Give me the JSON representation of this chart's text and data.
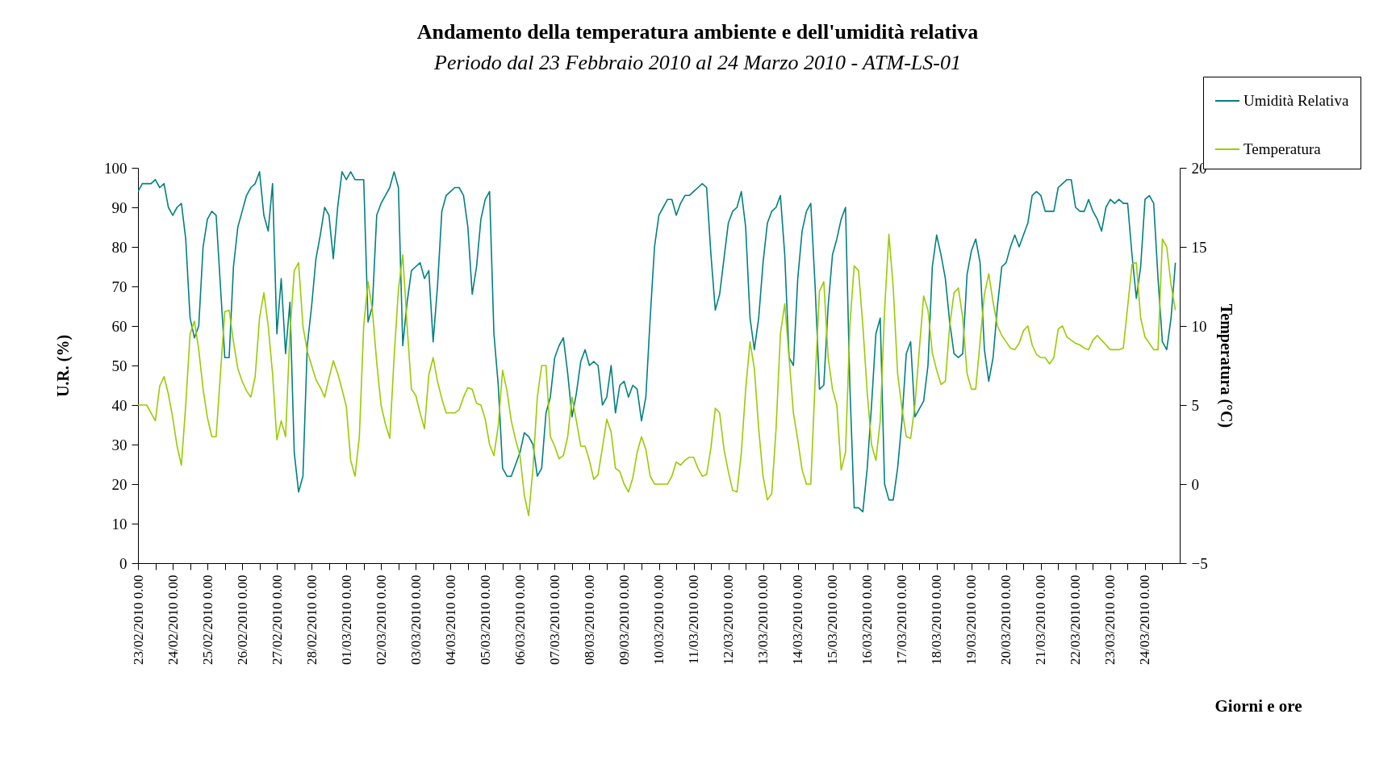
{
  "chart_data": {
    "type": "line",
    "title": "Andamento della temperatura ambiente e dell'umidità relativa",
    "subtitle": "Periodo dal 23 Febbraio 2010 al 24 Marzo 2010 - ATM-LS-01",
    "xlabel": "Giorni e ore",
    "ylabel": "U.R. (%)",
    "y2label": "Temperatura (°C)",
    "legend": "top right",
    "x": [
      "2010-02-23T00:00",
      "2010-02-23T03:00",
      "2010-02-23T06:00",
      "2010-02-23T09:00",
      "2010-02-23T12:00",
      "2010-02-23T15:00",
      "2010-02-23T18:00",
      "2010-02-23T21:00",
      "2010-02-24T00:00",
      "2010-02-24T03:00",
      "2010-02-24T06:00",
      "2010-02-24T09:00",
      "2010-02-24T12:00",
      "2010-02-24T15:00",
      "2010-02-24T18:00",
      "2010-02-24T21:00",
      "2010-02-25T00:00",
      "2010-02-25T03:00",
      "2010-02-25T06:00",
      "2010-02-25T09:00",
      "2010-02-25T12:00",
      "2010-02-25T15:00",
      "2010-02-25T18:00",
      "2010-02-25T21:00",
      "2010-02-26T00:00",
      "2010-02-26T03:00",
      "2010-02-26T06:00",
      "2010-02-26T09:00",
      "2010-02-26T12:00",
      "2010-02-26T15:00",
      "2010-02-26T18:00",
      "2010-02-26T21:00",
      "2010-02-27T00:00",
      "2010-02-27T03:00",
      "2010-02-27T06:00",
      "2010-02-27T09:00",
      "2010-02-27T12:00",
      "2010-02-27T15:00",
      "2010-02-27T18:00",
      "2010-02-27T21:00",
      "2010-02-28T00:00",
      "2010-02-28T03:00",
      "2010-02-28T06:00",
      "2010-02-28T09:00",
      "2010-02-28T12:00",
      "2010-02-28T15:00",
      "2010-02-28T18:00",
      "2010-02-28T21:00",
      "2010-03-01T00:00",
      "2010-03-01T03:00",
      "2010-03-01T06:00",
      "2010-03-01T09:00",
      "2010-03-01T12:00",
      "2010-03-01T15:00",
      "2010-03-01T18:00",
      "2010-03-01T21:00",
      "2010-03-02T00:00",
      "2010-03-02T03:00",
      "2010-03-02T06:00",
      "2010-03-02T09:00",
      "2010-03-02T12:00",
      "2010-03-02T15:00",
      "2010-03-02T18:00",
      "2010-03-02T21:00",
      "2010-03-03T00:00",
      "2010-03-03T03:00",
      "2010-03-03T06:00",
      "2010-03-03T09:00",
      "2010-03-03T12:00",
      "2010-03-03T15:00",
      "2010-03-03T18:00",
      "2010-03-03T21:00",
      "2010-03-04T00:00",
      "2010-03-04T03:00",
      "2010-03-04T06:00",
      "2010-03-04T09:00",
      "2010-03-04T12:00",
      "2010-03-04T15:00",
      "2010-03-04T18:00",
      "2010-03-04T21:00",
      "2010-03-05T00:00",
      "2010-03-05T03:00",
      "2010-03-05T06:00",
      "2010-03-05T09:00",
      "2010-03-05T12:00",
      "2010-03-05T15:00",
      "2010-03-05T18:00",
      "2010-03-05T21:00",
      "2010-03-06T00:00",
      "2010-03-06T03:00",
      "2010-03-06T06:00",
      "2010-03-06T09:00",
      "2010-03-06T12:00",
      "2010-03-06T15:00",
      "2010-03-06T18:00",
      "2010-03-06T21:00",
      "2010-03-07T00:00",
      "2010-03-07T03:00",
      "2010-03-07T06:00",
      "2010-03-07T09:00",
      "2010-03-07T12:00",
      "2010-03-07T15:00",
      "2010-03-07T18:00",
      "2010-03-07T21:00",
      "2010-03-08T00:00",
      "2010-03-08T03:00",
      "2010-03-08T06:00",
      "2010-03-08T09:00",
      "2010-03-08T12:00",
      "2010-03-08T15:00",
      "2010-03-08T18:00",
      "2010-03-08T21:00",
      "2010-03-09T00:00",
      "2010-03-09T03:00",
      "2010-03-09T06:00",
      "2010-03-09T09:00",
      "2010-03-09T12:00",
      "2010-03-09T15:00",
      "2010-03-09T18:00",
      "2010-03-09T21:00",
      "2010-03-10T00:00",
      "2010-03-10T03:00",
      "2010-03-10T06:00",
      "2010-03-10T09:00",
      "2010-03-10T12:00",
      "2010-03-10T15:00",
      "2010-03-10T18:00",
      "2010-03-10T21:00",
      "2010-03-11T00:00",
      "2010-03-11T03:00",
      "2010-03-11T06:00",
      "2010-03-11T09:00",
      "2010-03-11T12:00",
      "2010-03-11T15:00",
      "2010-03-11T18:00",
      "2010-03-11T21:00",
      "2010-03-12T00:00",
      "2010-03-12T03:00",
      "2010-03-12T06:00",
      "2010-03-12T09:00",
      "2010-03-12T12:00",
      "2010-03-12T15:00",
      "2010-03-12T18:00",
      "2010-03-12T21:00",
      "2010-03-13T00:00",
      "2010-03-13T03:00",
      "2010-03-13T06:00",
      "2010-03-13T09:00",
      "2010-03-13T12:00",
      "2010-03-13T15:00",
      "2010-03-13T18:00",
      "2010-03-13T21:00",
      "2010-03-14T00:00",
      "2010-03-14T03:00",
      "2010-03-14T06:00",
      "2010-03-14T09:00",
      "2010-03-14T12:00",
      "2010-03-14T15:00",
      "2010-03-14T18:00",
      "2010-03-14T21:00",
      "2010-03-15T00:00",
      "2010-03-15T03:00",
      "2010-03-15T06:00",
      "2010-03-15T09:00",
      "2010-03-15T12:00",
      "2010-03-15T15:00",
      "2010-03-15T18:00",
      "2010-03-15T21:00",
      "2010-03-16T00:00",
      "2010-03-16T03:00",
      "2010-03-16T06:00",
      "2010-03-16T09:00",
      "2010-03-16T12:00",
      "2010-03-16T15:00",
      "2010-03-16T18:00",
      "2010-03-16T21:00",
      "2010-03-17T00:00",
      "2010-03-17T03:00",
      "2010-03-17T06:00",
      "2010-03-17T09:00",
      "2010-03-17T12:00",
      "2010-03-17T15:00",
      "2010-03-17T18:00",
      "2010-03-17T21:00",
      "2010-03-18T00:00",
      "2010-03-18T03:00",
      "2010-03-18T06:00",
      "2010-03-18T09:00",
      "2010-03-18T12:00",
      "2010-03-18T15:00",
      "2010-03-18T18:00",
      "2010-03-18T21:00",
      "2010-03-19T00:00",
      "2010-03-19T03:00",
      "2010-03-19T06:00",
      "2010-03-19T09:00",
      "2010-03-19T12:00",
      "2010-03-19T15:00",
      "2010-03-19T18:00",
      "2010-03-19T21:00",
      "2010-03-20T00:00",
      "2010-03-20T03:00",
      "2010-03-20T06:00",
      "2010-03-20T09:00",
      "2010-03-20T12:00",
      "2010-03-20T15:00",
      "2010-03-20T18:00",
      "2010-03-20T21:00",
      "2010-03-21T00:00",
      "2010-03-21T03:00",
      "2010-03-21T06:00",
      "2010-03-21T09:00",
      "2010-03-21T12:00",
      "2010-03-21T15:00",
      "2010-03-21T18:00",
      "2010-03-21T21:00",
      "2010-03-22T00:00",
      "2010-03-22T03:00",
      "2010-03-22T06:00",
      "2010-03-22T09:00",
      "2010-03-22T12:00",
      "2010-03-22T15:00",
      "2010-03-22T18:00",
      "2010-03-22T21:00",
      "2010-03-23T00:00",
      "2010-03-23T03:00",
      "2010-03-23T06:00",
      "2010-03-23T09:00",
      "2010-03-23T12:00",
      "2010-03-23T15:00",
      "2010-03-23T18:00",
      "2010-03-23T21:00",
      "2010-03-24T00:00",
      "2010-03-24T03:00",
      "2010-03-24T06:00",
      "2010-03-24T09:00",
      "2010-03-24T12:00",
      "2010-03-24T15:00",
      "2010-03-24T18:00",
      "2010-03-24T21:00"
    ],
    "series": [
      {
        "name": "Umidità Relativa",
        "color": "#008080",
        "values": [
          94,
          96,
          96,
          96,
          97,
          95,
          96,
          90,
          88,
          90,
          91,
          82,
          62,
          57,
          60,
          80,
          87,
          89,
          88,
          70,
          52,
          52,
          75,
          85,
          89,
          93,
          95,
          96,
          99,
          88,
          84,
          96,
          58,
          72,
          53,
          66,
          28,
          18,
          22,
          55,
          65,
          77,
          83,
          90,
          88,
          77,
          90,
          99,
          97,
          99,
          97,
          97,
          97,
          61,
          65,
          88,
          91,
          93,
          95,
          99,
          95,
          55,
          66,
          74,
          75,
          76,
          72,
          74,
          56,
          70,
          89,
          93,
          94,
          95,
          95,
          93,
          85,
          68,
          75,
          87,
          92,
          94,
          58,
          45,
          24,
          22,
          22,
          25,
          28,
          33,
          32,
          30,
          22,
          24,
          38,
          42,
          52,
          55,
          57,
          48,
          37,
          43,
          51,
          54,
          50,
          51,
          50,
          40,
          42,
          50,
          38,
          45,
          46,
          42,
          45,
          44,
          36,
          42,
          62,
          80,
          88,
          90,
          92,
          92,
          88,
          91,
          93,
          93,
          94,
          95,
          96,
          95,
          78,
          64,
          68,
          77,
          86,
          89,
          90,
          94,
          85,
          62,
          54,
          62,
          76,
          86,
          89,
          90,
          93,
          78,
          52,
          50,
          72,
          84,
          89,
          91,
          70,
          44,
          45,
          65,
          78,
          82,
          87,
          90,
          45,
          14,
          14,
          13,
          24,
          40,
          58,
          62,
          20,
          16,
          16,
          24,
          36,
          53,
          56,
          37,
          39,
          41,
          50,
          75,
          83,
          78,
          72,
          61,
          53,
          52,
          53,
          73,
          79,
          82,
          76,
          54,
          46,
          52,
          65,
          75,
          76,
          80,
          83,
          80,
          83,
          86,
          93,
          94,
          93,
          89,
          89,
          89,
          95,
          96,
          97,
          97,
          90,
          89,
          89,
          92,
          89,
          87,
          84,
          90,
          92,
          91,
          92,
          91,
          91,
          78,
          67,
          75,
          92,
          93,
          91,
          72,
          56,
          54,
          62,
          76
        ]
      },
      {
        "name": "Temperatura",
        "color": "#99cc00",
        "axis": "y2",
        "values": [
          5,
          5,
          5,
          4.5,
          4,
          6.2,
          6.8,
          5.7,
          4.2,
          2.4,
          1.2,
          5,
          9.5,
          10.3,
          8.5,
          6,
          4.2,
          3,
          3,
          7,
          10.9,
          11,
          9,
          7.3,
          6.5,
          5.9,
          5.5,
          6.8,
          10.5,
          12.1,
          10,
          7,
          2.8,
          4,
          3,
          9.5,
          13.5,
          14,
          10,
          8.4,
          7.5,
          6.6,
          6.1,
          5.5,
          6.7,
          7.8,
          7,
          6,
          4.9,
          1.5,
          0.5,
          3,
          10,
          12.8,
          11,
          7.7,
          5,
          3.8,
          2.9,
          8,
          12.3,
          14.5,
          10,
          6,
          5.6,
          4.5,
          3.5,
          6.9,
          8,
          6.5,
          5.4,
          4.5,
          4.5,
          4.5,
          4.7,
          5.5,
          6.1,
          6,
          5.1,
          5,
          4.1,
          2.5,
          1.8,
          3.7,
          7.2,
          5.9,
          4,
          2.8,
          1.8,
          -0.7,
          -2,
          1,
          5.5,
          7.5,
          7.5,
          3,
          2.4,
          1.6,
          1.8,
          3,
          5.5,
          4,
          2.4,
          2.4,
          1.5,
          0.3,
          0.6,
          2.3,
          4.1,
          3.3,
          1,
          0.8,
          0,
          -0.5,
          0.4,
          2,
          3,
          2.2,
          0.5,
          0,
          0,
          0,
          0,
          0.5,
          1.4,
          1.2,
          1.5,
          1.7,
          1.7,
          1,
          0.5,
          0.6,
          2.3,
          4.8,
          4.5,
          2.2,
          0.8,
          -0.4,
          -0.5,
          2,
          6,
          9,
          7.3,
          3.5,
          0.5,
          -1,
          -0.6,
          3.5,
          9.5,
          11.4,
          8,
          4.5,
          2.8,
          0.9,
          0,
          0,
          6.5,
          12.2,
          12.8,
          8,
          6,
          5,
          0.9,
          2,
          10,
          13.8,
          13.5,
          10,
          5.8,
          2.5,
          1.5,
          4,
          11,
          15.8,
          12.4,
          7,
          4.8,
          3,
          2.9,
          5,
          8.5,
          11.9,
          11,
          8.3,
          7.2,
          6.3,
          6.5,
          10,
          12.1,
          12.4,
          10.5,
          7,
          6,
          6,
          9,
          12,
          13.3,
          11.5,
          10,
          9.4,
          9,
          8.6,
          8.5,
          8.9,
          9.7,
          10,
          8.8,
          8.2,
          8,
          8,
          7.6,
          8,
          9.8,
          10,
          9.3,
          9.1,
          8.9,
          8.8,
          8.6,
          8.5,
          9.1,
          9.4,
          9.1,
          8.8,
          8.5,
          8.5,
          8.5,
          8.6,
          11.2,
          13.9,
          14,
          10.5,
          9.3,
          8.9,
          8.5,
          8.5,
          15.5,
          15,
          12.6,
          11
        ]
      }
    ],
    "xlim": [
      "2010-02-23T00:00",
      "2010-03-25T00:00"
    ],
    "xticks": [
      {
        "value": "2010-02-23T12:00",
        "label": null
      },
      {
        "value": "2010-02-24T12:00",
        "label": null
      },
      {
        "value": "2010-02-25T12:00",
        "label": null
      },
      {
        "value": "2010-02-26T12:00",
        "label": null
      },
      {
        "value": "2010-02-27T12:00",
        "label": null
      },
      {
        "value": "2010-02-28T12:00",
        "label": null
      },
      {
        "value": "2010-03-01T12:00",
        "label": null
      },
      {
        "value": "2010-03-02T12:00",
        "label": null
      },
      {
        "value": "2010-03-03T12:00",
        "label": null
      },
      {
        "value": "2010-03-04T12:00",
        "label": null
      },
      {
        "value": "2010-03-05T12:00",
        "label": null
      },
      {
        "value": "2010-03-06T12:00",
        "label": null
      },
      {
        "value": "2010-03-07T12:00",
        "label": null
      },
      {
        "value": "2010-03-08T12:00",
        "label": null
      },
      {
        "value": "2010-03-09T12:00",
        "label": null
      },
      {
        "value": "2010-03-10T12:00",
        "label": null
      },
      {
        "value": "2010-03-11T12:00",
        "label": null
      },
      {
        "value": "2010-03-12T12:00",
        "label": null
      },
      {
        "value": "2010-03-13T12:00",
        "label": null
      },
      {
        "value": "2010-03-14T12:00",
        "label": null
      },
      {
        "value": "2010-03-15T12:00",
        "label": null
      },
      {
        "value": "2010-03-16T12:00",
        "label": null
      },
      {
        "value": "2010-03-17T12:00",
        "label": null
      },
      {
        "value": "2010-03-18T12:00",
        "label": null
      },
      {
        "value": "2010-03-19T12:00",
        "label": null
      },
      {
        "value": "2010-03-20T12:00",
        "label": null
      },
      {
        "value": "2010-03-21T12:00",
        "label": null
      },
      {
        "value": "2010-03-22T12:00",
        "label": null
      },
      {
        "value": "2010-03-23T12:00",
        "label": null
      },
      {
        "value": "2010-03-24T12:00",
        "label": null
      },
      {
        "value": "2010-02-23T00:00",
        "label": "23/02/2010 0.00"
      },
      {
        "value": "2010-02-24T00:00",
        "label": "24/02/2010 0.00"
      },
      {
        "value": "2010-02-25T00:00",
        "label": "25/02/2010 0.00"
      },
      {
        "value": "2010-02-26T00:00",
        "label": "26/02/2010 0.00"
      },
      {
        "value": "2010-02-27T00:00",
        "label": "27/02/2010 0.00"
      },
      {
        "value": "2010-02-28T00:00",
        "label": "28/02/2010 0.00"
      },
      {
        "value": "2010-03-01T00:00",
        "label": "01/03/2010 0.00"
      },
      {
        "value": "2010-03-02T00:00",
        "label": "02/03/2010 0.00"
      },
      {
        "value": "2010-03-03T00:00",
        "label": "03/03/2010 0.00"
      },
      {
        "value": "2010-03-04T00:00",
        "label": "04/03/2010 0.00"
      },
      {
        "value": "2010-03-05T00:00",
        "label": "05/03/2010 0.00"
      },
      {
        "value": "2010-03-06T00:00",
        "label": "06/03/2010 0.00"
      },
      {
        "value": "2010-03-07T00:00",
        "label": "07/03/2010 0.00"
      },
      {
        "value": "2010-03-08T00:00",
        "label": "08/03/2010 0.00"
      },
      {
        "value": "2010-03-09T00:00",
        "label": "09/03/2010 0.00"
      },
      {
        "value": "2010-03-10T00:00",
        "label": "10/03/2010 0.00"
      },
      {
        "value": "2010-03-11T00:00",
        "label": "11/03/2010 0.00"
      },
      {
        "value": "2010-03-12T00:00",
        "label": "12/03/2010 0.00"
      },
      {
        "value": "2010-03-13T00:00",
        "label": "13/03/2010 0.00"
      },
      {
        "value": "2010-03-14T00:00",
        "label": "14/03/2010 0.00"
      },
      {
        "value": "2010-03-15T00:00",
        "label": "15/03/2010 0.00"
      },
      {
        "value": "2010-03-16T00:00",
        "label": "16/03/2010 0.00"
      },
      {
        "value": "2010-03-17T00:00",
        "label": "17/03/2010 0.00"
      },
      {
        "value": "2010-03-18T00:00",
        "label": "18/03/2010 0.00"
      },
      {
        "value": "2010-03-19T00:00",
        "label": "19/03/2010 0.00"
      },
      {
        "value": "2010-03-20T00:00",
        "label": "20/03/2010 0.00"
      },
      {
        "value": "2010-03-21T00:00",
        "label": "21/03/2010 0.00"
      },
      {
        "value": "2010-03-22T00:00",
        "label": "22/03/2010 0.00"
      },
      {
        "value": "2010-03-23T00:00",
        "label": "23/03/2010 0.00"
      },
      {
        "value": "2010-03-24T00:00",
        "label": "24/03/2010 0.00"
      }
    ],
    "ylim": [
      0,
      100
    ],
    "yticks": [
      0,
      10,
      20,
      30,
      40,
      50,
      60,
      70,
      80,
      90,
      100
    ],
    "y2lim": [
      -5,
      20
    ],
    "y2ticks": [
      -5,
      0,
      5,
      10,
      15,
      20
    ]
  }
}
